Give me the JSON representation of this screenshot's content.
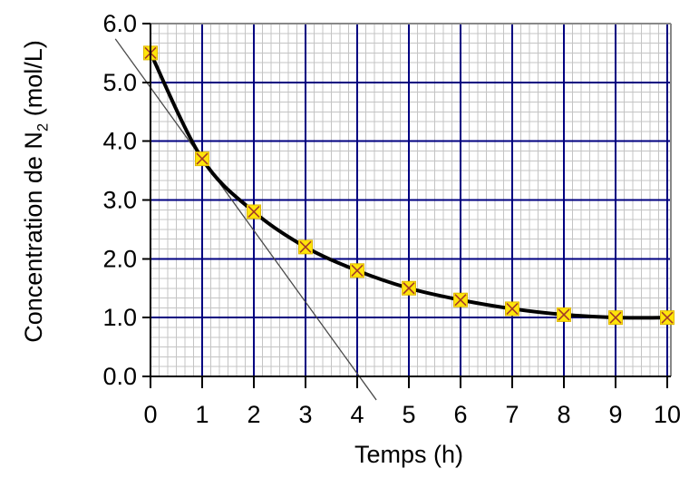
{
  "chart_data": {
    "type": "line",
    "title": "",
    "xlabel": "Temps (h)",
    "ylabel": {
      "text": "Concentration de N₂ (mol/L)",
      "pre": "Concentration de N",
      "sub": "2",
      "post": " (mol/L)"
    },
    "x": [
      0,
      1,
      2,
      3,
      4,
      5,
      6,
      7,
      8,
      9,
      10
    ],
    "series": [
      {
        "name": "concentration-N2",
        "values": [
          5.5,
          3.7,
          2.8,
          2.2,
          1.8,
          1.5,
          1.3,
          1.15,
          1.05,
          1.0,
          1.0
        ]
      }
    ],
    "tangent_line": {
      "x1": -0.68,
      "y1": 5.74,
      "x2": 4.37,
      "y2": -0.4
    },
    "xlim": [
      0,
      10.07
    ],
    "ylim": [
      0,
      6
    ],
    "x_tick_labels": [
      "0",
      "1",
      "2",
      "3",
      "4",
      "5",
      "6",
      "7",
      "8",
      "9",
      "10"
    ],
    "y_tick_labels": [
      "0.0",
      "1.0",
      "2.0",
      "3.0",
      "4.0",
      "5.0",
      "6.0"
    ],
    "minor_divisions_per_unit": 6,
    "grid": {
      "major": "on",
      "minor": "on"
    },
    "legend": "none",
    "colors": {
      "curve": "#000000",
      "tangent": "#4a4a4a",
      "grid_major": "#000080",
      "grid_minor": "#c4c4c4",
      "frame": "#888888",
      "axis": "#000000",
      "marker_fill": "#ffe50a",
      "marker_border": "#e0b900",
      "marker_cross": "#a23b28",
      "background": "#ffffff"
    }
  }
}
